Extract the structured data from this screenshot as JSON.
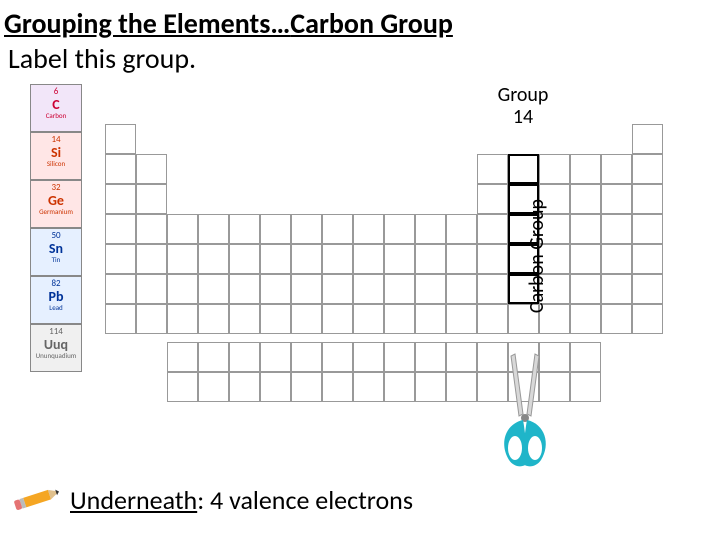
{
  "title_prefix": "Grouping the Elements…",
  "title_highlight": "Carbon Group",
  "subtitle": "Label this group.",
  "group_label_line1": "Group",
  "group_label_line2": "14",
  "vertical_label": "Carbon Group",
  "footer_underlined": "Underneath",
  "footer_rest": ":  4 valence electrons",
  "elements": [
    {
      "num": "6",
      "sym": "C",
      "name": "Carbon",
      "bg": "#f2e6f9",
      "fg": "#cc0033"
    },
    {
      "num": "14",
      "sym": "Si",
      "name": "Silicon",
      "bg": "#ffe6e6",
      "fg": "#cc3300"
    },
    {
      "num": "32",
      "sym": "Ge",
      "name": "Germanium",
      "bg": "#ffe6e6",
      "fg": "#cc3300"
    },
    {
      "num": "50",
      "sym": "Sn",
      "name": "Tin",
      "bg": "#e6f0ff",
      "fg": "#003399"
    },
    {
      "num": "82",
      "sym": "Pb",
      "name": "Lead",
      "bg": "#e6f0ff",
      "fg": "#003399"
    },
    {
      "num": "114",
      "sym": "Uuq",
      "name": "Ununquadium",
      "bg": "#f0f0f0",
      "fg": "#666666"
    }
  ],
  "scissors_color": "#1fb5c9",
  "pencil_colors": {
    "body": "#f5a623",
    "tip": "#e0c08c",
    "lead": "#333",
    "eraser": "#e57373",
    "band": "#bbb"
  },
  "grid_color": "#999999"
}
